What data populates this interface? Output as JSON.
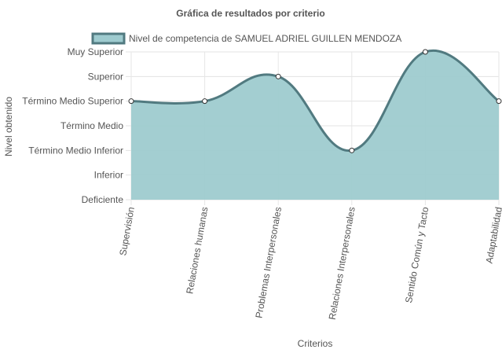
{
  "chart_data": {
    "type": "line",
    "title": "Gráfica de resultados por criterio",
    "xlabel": "Criterios",
    "ylabel": "Nivel obtenido",
    "categories": [
      "Supervisión",
      "Relaciones humanas",
      "Problemas Interpersonales",
      "Relaciones Interpersonales",
      "Sentido Común y Tacto",
      "Adaptabilidad"
    ],
    "y_levels": [
      "Deficiente",
      "Inferior",
      "Término Medio Inferior",
      "Término Medio",
      "Término Medio Superior",
      "Superior",
      "Muy Superior"
    ],
    "ylim": [
      1,
      7
    ],
    "series": [
      {
        "name": "Nivel de competencia de SAMUEL ADRIEL GUILLEN MENDOZA",
        "values": [
          5,
          5,
          6,
          3,
          7,
          5
        ],
        "fill_color": "#9ecbcf",
        "line_color": "#517a80"
      }
    ],
    "grid": true,
    "legend_position": "top"
  }
}
